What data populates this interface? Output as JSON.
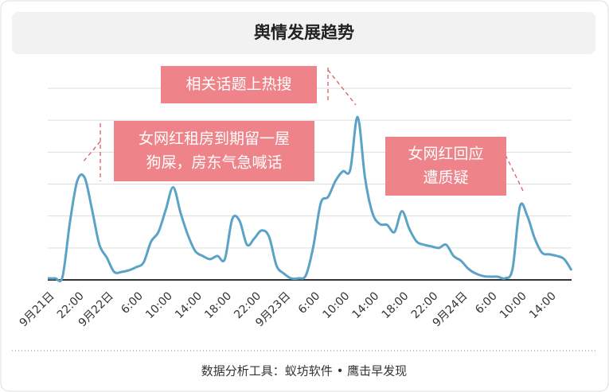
{
  "chart_data": {
    "type": "line",
    "title": "舆情发展趋势",
    "footer": "数据分析工具：蚁坊软件 • 鹰击早发现",
    "categories": [
      "9月21日",
      null,
      null,
      null,
      "22:00",
      null,
      null,
      null,
      "9月22日",
      null,
      null,
      null,
      "6:00",
      null,
      null,
      null,
      "10:00",
      null,
      null,
      null,
      "14:00",
      null,
      null,
      null,
      "18:00",
      null,
      null,
      null,
      "22:00",
      null,
      null,
      null,
      "9月23日",
      null,
      null,
      null,
      "6:00",
      null,
      null,
      null,
      "10:00",
      null,
      null,
      null,
      "14:00",
      null,
      null,
      null,
      "18:00",
      null,
      null,
      null,
      "22:00",
      null,
      null,
      null,
      "9月24日",
      null,
      null,
      null,
      "6:00",
      null,
      null,
      null,
      "10:00",
      null,
      null,
      null,
      "14:00",
      null,
      null,
      null
    ],
    "series": [
      {
        "color": "#5ba3c6",
        "values": [
          0.05,
          0.05,
          0.1,
          1.8,
          3.1,
          3.2,
          2.2,
          1.1,
          0.7,
          0.25,
          0.25,
          0.3,
          0.4,
          0.55,
          1.2,
          1.5,
          2.2,
          2.9,
          2.1,
          1.4,
          0.9,
          0.75,
          0.65,
          0.75,
          0.65,
          1.9,
          1.85,
          1.1,
          1.3,
          1.55,
          1.35,
          0.45,
          0.2,
          0.05,
          0.05,
          0.15,
          1.05,
          2.4,
          2.6,
          3.1,
          3.4,
          3.45,
          5.1,
          3.2,
          2.1,
          1.75,
          1.72,
          1.5,
          2.15,
          1.6,
          1.2,
          1.1,
          1.05,
          1.0,
          1.1,
          0.75,
          0.6,
          0.35,
          0.2,
          0.12,
          0.1,
          0.1,
          0.05,
          0.35,
          2.3,
          2.0,
          1.3,
          0.85,
          0.8,
          0.75,
          0.65,
          0.3
        ]
      }
    ],
    "ylim": [
      0,
      6
    ],
    "yticks": [
      0,
      1,
      2,
      3,
      4,
      5,
      6
    ],
    "grid": true,
    "annotations": [
      {
        "lines": [
          "相关话题上热搜"
        ]
      },
      {
        "lines": [
          "女网红租房到期留一屋",
          "狗屎，房东气急喊话"
        ]
      },
      {
        "lines": [
          "女网红回应",
          "遭质疑"
        ]
      }
    ]
  }
}
